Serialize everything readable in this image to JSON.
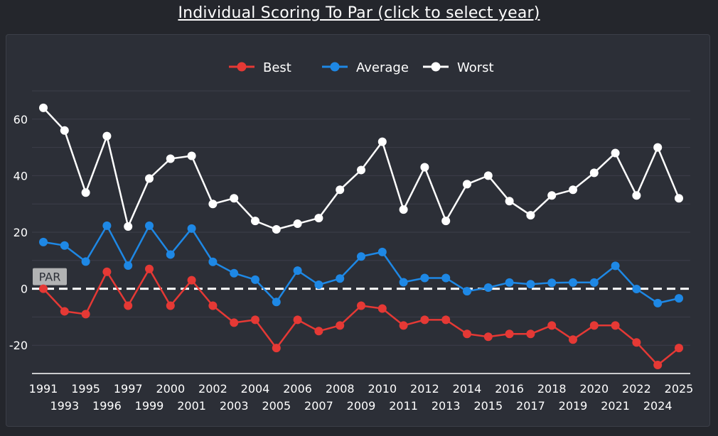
{
  "page": {
    "title": "Individual Scoring To Par (click to select year)"
  },
  "colors": {
    "best": "#e53935",
    "average": "#1e88e5",
    "worst": "#ffffff",
    "background": "#24262c",
    "panel": "#2c2f37",
    "grid": "#3c3f4a"
  },
  "chart_data": {
    "type": "line",
    "title": "Individual Scoring To Par (click to select year)",
    "xlabel": "",
    "ylabel": "",
    "x": [
      1991,
      1993,
      1995,
      1996,
      1997,
      1999,
      2000,
      2001,
      2002,
      2003,
      2004,
      2005,
      2006,
      2007,
      2008,
      2009,
      2010,
      2011,
      2012,
      2013,
      2014,
      2015,
      2016,
      2017,
      2018,
      2019,
      2020,
      2021,
      2022,
      2024,
      2025
    ],
    "x_tick_labels": [
      "1991",
      "1993",
      "1995",
      "1996",
      "1997",
      "1999",
      "2000",
      "2001",
      "2002",
      "2003",
      "2004",
      "2005",
      "2006",
      "2007",
      "2008",
      "2009",
      "2010",
      "2011",
      "2012",
      "2013",
      "2014",
      "2015",
      "2016",
      "2017",
      "2018",
      "2019",
      "2020",
      "2021",
      "2022",
      "2024",
      "2025"
    ],
    "series": [
      {
        "name": "Best",
        "color": "#e53935",
        "values": [
          0,
          -8,
          -9,
          6,
          -6,
          7,
          -6,
          3,
          -6,
          -12,
          -11,
          -21,
          -11,
          -15,
          -13,
          -6,
          -7,
          -13,
          -11,
          -11,
          -16,
          -17,
          -16,
          -16,
          -13,
          -18,
          -13,
          -13,
          -19,
          -27,
          -21
        ]
      },
      {
        "name": "Average",
        "color": "#1e88e5",
        "values": [
          16.5,
          15.3,
          9.6,
          22.3,
          8.2,
          22.3,
          12.1,
          21.3,
          9.5,
          5.5,
          3.2,
          -4.7,
          6.4,
          1.4,
          3.6,
          11.4,
          13.0,
          2.3,
          3.8,
          3.8,
          -0.9,
          0.4,
          2.2,
          1.6,
          2.1,
          2.2,
          2.2,
          8.1,
          -0.1,
          -5.1,
          -3.4
        ]
      },
      {
        "name": "Worst",
        "color": "#ffffff",
        "values": [
          64,
          56,
          34,
          54,
          22,
          39,
          46,
          47,
          30,
          32,
          24,
          21,
          23,
          25,
          35,
          42,
          52,
          28,
          43,
          24,
          37,
          40,
          31,
          26,
          33,
          35,
          41,
          48,
          33,
          50,
          32
        ]
      }
    ],
    "y_ticks": [
      -20,
      0,
      20,
      40,
      60
    ],
    "ylim": [
      -30,
      70
    ],
    "par_label": "PAR",
    "par_value": 0,
    "grid": true,
    "legend": {
      "position": "top-center",
      "entries": [
        "Best",
        "Average",
        "Worst"
      ]
    }
  }
}
